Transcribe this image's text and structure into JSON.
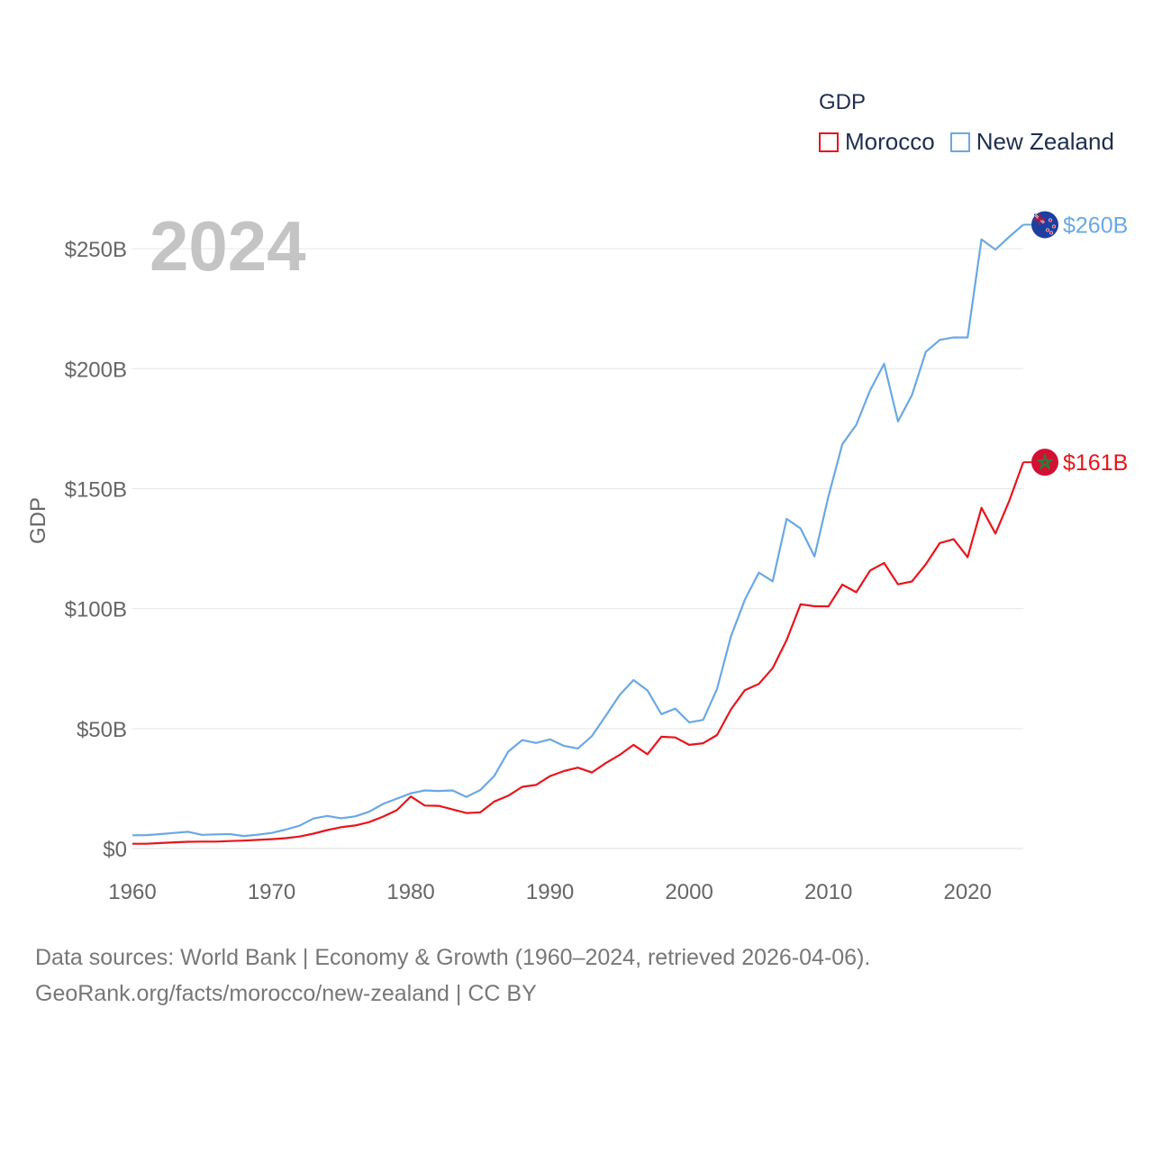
{
  "legend": {
    "title": "GDP",
    "items": [
      {
        "label": "Morocco",
        "color": "#e8151b"
      },
      {
        "label": "New Zealand",
        "color": "#6aa8e4"
      }
    ]
  },
  "chart_data": {
    "type": "line",
    "title": "GDP",
    "year_label": "2024",
    "ylabel": "GDP",
    "xlabel": "",
    "xlim": [
      1960,
      2024
    ],
    "ylim": [
      0,
      270
    ],
    "units": "billion USD",
    "x_ticks": [
      1960,
      1970,
      1980,
      1990,
      2000,
      2010,
      2020
    ],
    "y_ticks": [
      0,
      50,
      100,
      150,
      200,
      250
    ],
    "y_tick_labels": [
      "$0",
      "$50B",
      "$100B",
      "$150B",
      "$200B",
      "$250B"
    ],
    "grid": true,
    "x": [
      1960,
      1961,
      1962,
      1963,
      1964,
      1965,
      1966,
      1967,
      1968,
      1969,
      1970,
      1971,
      1972,
      1973,
      1974,
      1975,
      1976,
      1977,
      1978,
      1979,
      1980,
      1981,
      1982,
      1983,
      1984,
      1985,
      1986,
      1987,
      1988,
      1989,
      1990,
      1991,
      1992,
      1993,
      1994,
      1995,
      1996,
      1997,
      1998,
      1999,
      2000,
      2001,
      2002,
      2003,
      2004,
      2005,
      2006,
      2007,
      2008,
      2009,
      2010,
      2011,
      2012,
      2013,
      2014,
      2015,
      2016,
      2017,
      2018,
      2019,
      2020,
      2021,
      2022,
      2023,
      2024
    ],
    "series": [
      {
        "name": "Morocco",
        "color": "#e8151b",
        "end_label": "$161B",
        "values": [
          2.0,
          2.0,
          2.3,
          2.6,
          2.8,
          2.9,
          2.9,
          3.1,
          3.3,
          3.6,
          3.9,
          4.3,
          5.0,
          6.2,
          7.7,
          8.9,
          9.6,
          11.0,
          13.3,
          16.0,
          21.7,
          17.9,
          17.8,
          16.3,
          14.8,
          15.1,
          19.6,
          22.0,
          25.7,
          26.5,
          30.2,
          32.3,
          33.7,
          31.7,
          35.6,
          39.0,
          43.2,
          39.3,
          46.6,
          46.3,
          43.2,
          43.9,
          47.3,
          58.0,
          66.0,
          68.6,
          75.2,
          86.9,
          101.8,
          101.0,
          100.9,
          110.0,
          106.8,
          115.9,
          119.0,
          110.1,
          111.3,
          118.5,
          127.3,
          128.9,
          121.4,
          142.0,
          131.3,
          145.0,
          161.0
        ]
      },
      {
        "name": "New Zealand",
        "color": "#6aa8e4",
        "end_label": "$260B",
        "values": [
          5.5,
          5.6,
          6.0,
          6.5,
          7.0,
          5.7,
          5.9,
          6.0,
          5.2,
          5.8,
          6.5,
          7.9,
          9.5,
          12.5,
          13.6,
          12.6,
          13.4,
          15.3,
          18.6,
          20.8,
          23.0,
          24.2,
          24.0,
          24.2,
          21.5,
          24.4,
          30.3,
          40.4,
          45.2,
          44.0,
          45.5,
          42.8,
          41.7,
          46.8,
          55.3,
          64.0,
          70.2,
          65.9,
          56.0,
          58.3,
          52.6,
          53.6,
          66.5,
          88.5,
          103.7,
          115.0,
          111.4,
          137.4,
          133.4,
          121.7,
          146.8,
          168.5,
          176.6,
          191.0,
          202.0,
          178.0,
          189.0,
          207.0,
          212.0,
          213.0,
          213.0,
          253.9,
          249.6,
          255.0,
          260.0
        ]
      }
    ],
    "source_text": "Data sources: World Bank | Economy & Growth (1960–2024, retrieved 2026-04-06).",
    "credit_text": "GeoRank.org/facts/morocco/new-zealand | CC BY"
  },
  "icons": [
    "new-zealand-flag-icon",
    "morocco-flag-icon"
  ],
  "text_colors": {
    "axis": "#666666",
    "year": "#c4c4c4",
    "grid": "#e4e4e4",
    "footer": "#777777"
  }
}
